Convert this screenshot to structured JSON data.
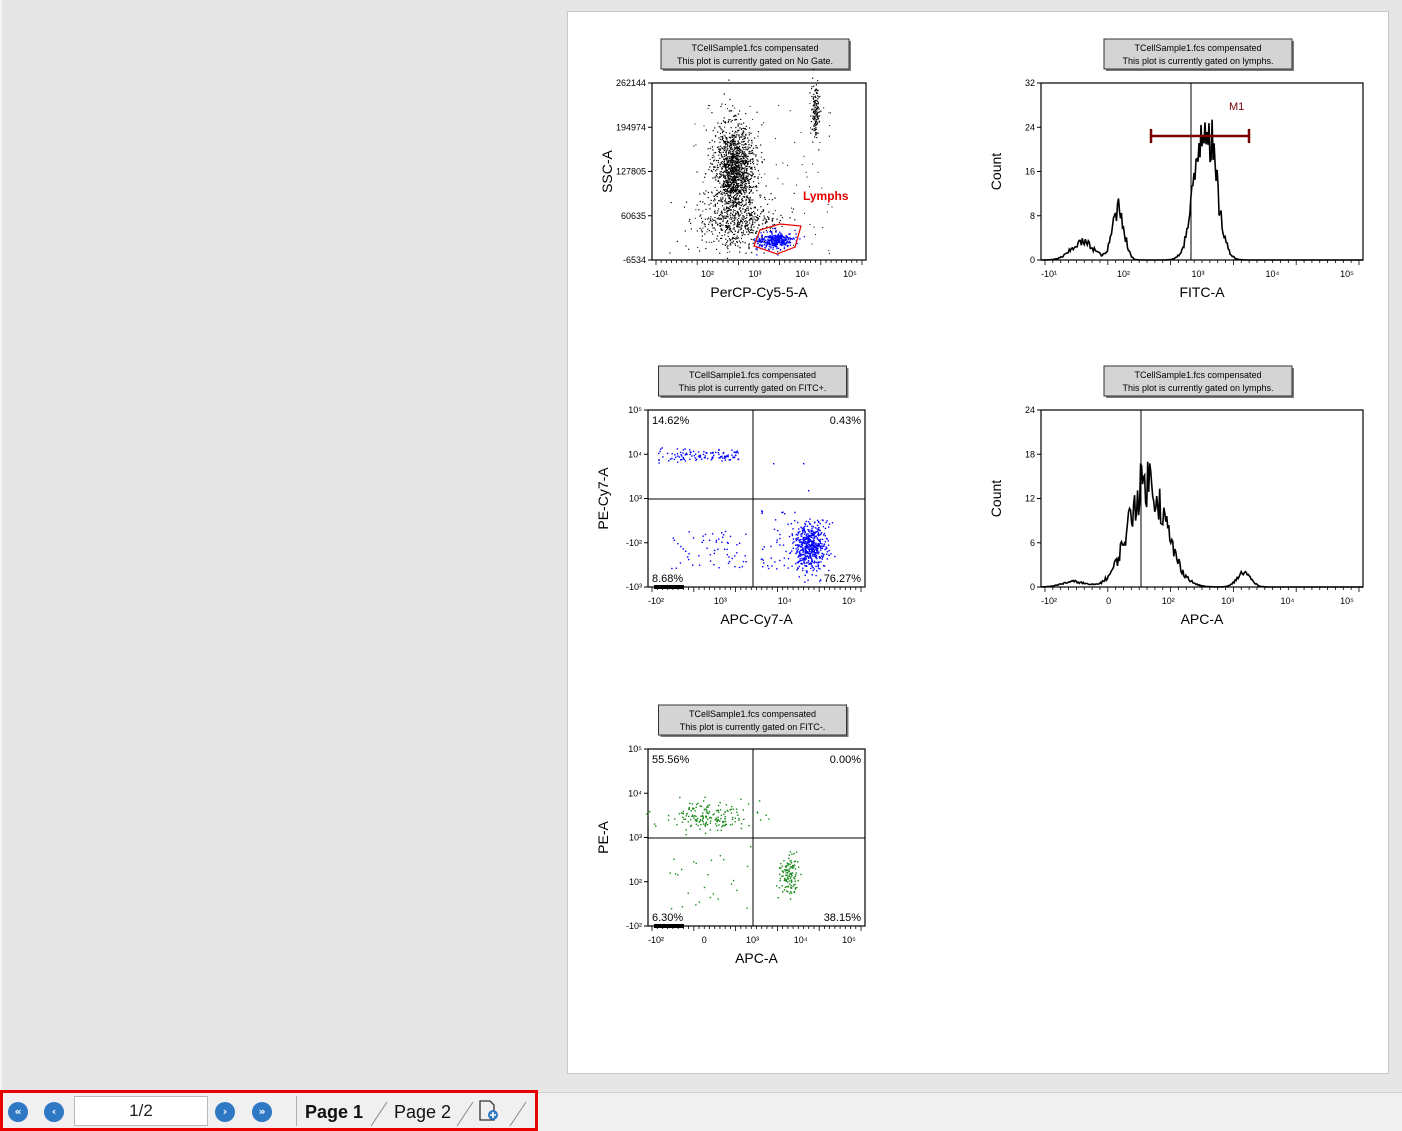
{
  "bottom_bar": {
    "first_page_label": "«",
    "prev_page_label": "‹",
    "next_page_label": "›",
    "last_page_label": "»",
    "page_indicator": "1/2",
    "tabs": [
      {
        "label": "Page 1",
        "active": true
      },
      {
        "label": "Page 2",
        "active": false
      }
    ],
    "icons": {
      "first": "first-page-icon",
      "prev": "previous-page-icon",
      "next": "next-page-icon",
      "last": "last-page-icon",
      "add": "add-page-icon"
    },
    "accent_color": "#2f78c4",
    "highlight_color": "#e60000"
  },
  "plots": [
    {
      "id": "p1",
      "header": [
        "TCellSample1.fcs compensated",
        "This plot is currently gated on No Gate."
      ],
      "kind": "dot",
      "x_label": "PerCP-Cy5-5-A",
      "y_label": "SSC-A",
      "y_ticks": [
        "262144",
        "194974",
        "127805",
        "60635",
        "-6534"
      ],
      "x_ticks": [
        "-10¹",
        "10²",
        "10³",
        "10⁴",
        "10⁵"
      ],
      "gate_label": "Lymphs",
      "dot_color": "#000000",
      "gate_color": "#e60000"
    },
    {
      "id": "p2",
      "header": [
        "TCellSample1.fcs compensated",
        "This plot is currently gated on lymphs."
      ],
      "kind": "histogram",
      "x_label": "FITC-A",
      "y_label": "Count",
      "y_ticks": [
        "32",
        "24",
        "16",
        "8",
        "0"
      ],
      "x_ticks": [
        "-10¹",
        "10²",
        "10³",
        "10⁴",
        "10⁵"
      ],
      "marker_label": "M1",
      "marker_color": "#7a0000"
    },
    {
      "id": "p3",
      "header": [
        "TCellSample1.fcs compensated",
        "This plot is currently gated on FITC+."
      ],
      "kind": "quadrant",
      "x_label": "APC-Cy7-A",
      "y_label": "PE-Cy7-A",
      "y_ticks": [
        "10⁵",
        "10⁴",
        "10³",
        "-10²",
        "-10³"
      ],
      "x_ticks": [
        "-10²",
        "10³",
        "10⁴",
        "10⁵"
      ],
      "quadrants": {
        "ul": "14.62%",
        "ur": "0.43%",
        "ll": "8.68%",
        "lr": "76.27%"
      },
      "dot_color": "#0000ff"
    },
    {
      "id": "p4",
      "header": [
        "TCellSample1.fcs compensated",
        "This plot is currently gated on lymphs."
      ],
      "kind": "histogram",
      "x_label": "APC-A",
      "y_label": "Count",
      "y_ticks": [
        "24",
        "18",
        "12",
        "6",
        "0"
      ],
      "x_ticks": [
        "-10²",
        "0",
        "10²",
        "10³",
        "10⁴",
        "10⁵"
      ]
    },
    {
      "id": "p5",
      "header": [
        "TCellSample1.fcs compensated",
        "This plot is currently gated on FITC-."
      ],
      "kind": "quadrant",
      "x_label": "APC-A",
      "y_label": "PE-A",
      "y_ticks": [
        "10⁵",
        "10⁴",
        "10³",
        "10²",
        "-10²"
      ],
      "x_ticks": [
        "-10²",
        "0",
        "10³",
        "10⁴",
        "10⁵"
      ],
      "quadrants": {
        "ul": "55.56%",
        "ur": "0.00%",
        "ll": "6.30%",
        "lr": "38.15%"
      },
      "dot_color": "#1a8a1a"
    }
  ]
}
